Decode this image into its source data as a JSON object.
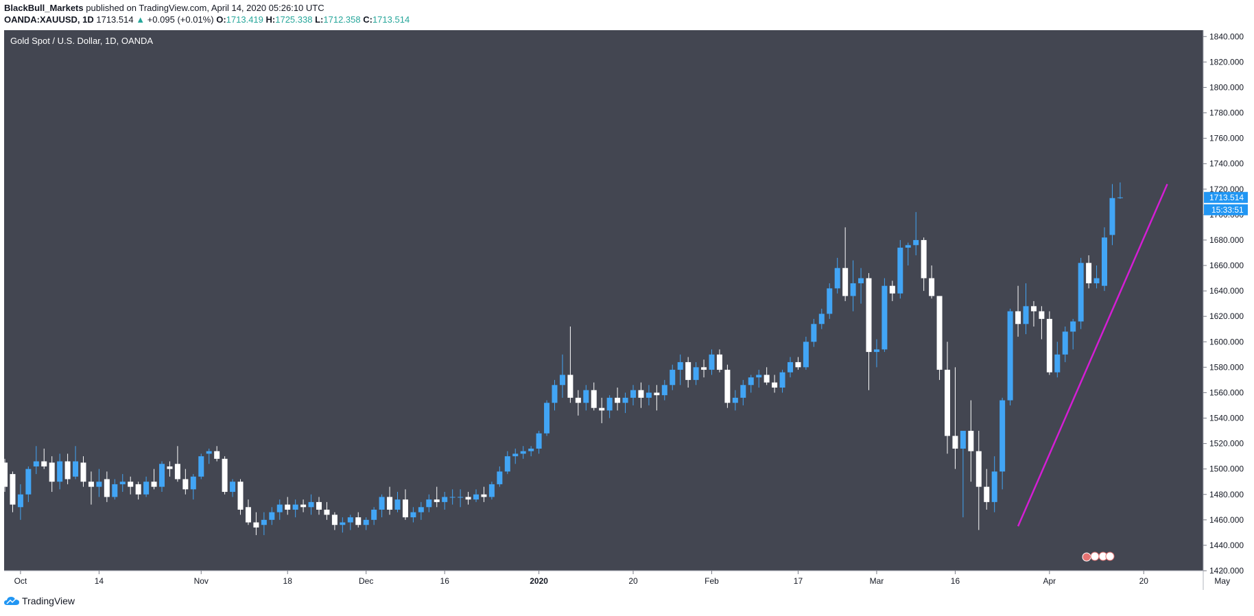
{
  "header": {
    "publisher": "BlackBull_Markets",
    "published_text": "published on TradingView.com, April 14, 2020 05:26:10 UTC",
    "symbol": "OANDA:XAUUSD, 1D",
    "last": "1713.514",
    "change": "+0.095 (+0.01%)",
    "o_label": "O:",
    "o_val": "1713.419",
    "h_label": "H:",
    "h_val": "1725.338",
    "l_label": "L:",
    "l_val": "1712.358",
    "c_label": "C:",
    "c_val": "1713.514"
  },
  "footer": {
    "brand": "TradingView"
  },
  "colors": {
    "background": "#434651",
    "up_candle": "#42a5f5",
    "down_candle": "#ffffff",
    "trendline": "#d41ed4",
    "price_badge": "#2196f3"
  },
  "chart_data": {
    "type": "candlestick",
    "title": "Gold Spot / U.S. Dollar, 1D, OANDA",
    "ylim": [
      1420,
      1845
    ],
    "y_ticks": [
      "1420.000",
      "1440.000",
      "1460.000",
      "1480.000",
      "1500.000",
      "1520.000",
      "1540.000",
      "1560.000",
      "1580.000",
      "1600.000",
      "1620.000",
      "1640.000",
      "1660.000",
      "1680.000",
      "1700.000",
      "1720.000",
      "1740.000",
      "1760.000",
      "1780.000",
      "1800.000",
      "1820.000",
      "1840.000"
    ],
    "x_ticks": [
      {
        "label": "Oct",
        "index": 2
      },
      {
        "label": "14",
        "index": 12
      },
      {
        "label": "Nov",
        "index": 25
      },
      {
        "label": "18",
        "index": 36
      },
      {
        "label": "Dec",
        "index": 46
      },
      {
        "label": "16",
        "index": 56
      },
      {
        "label": "2020",
        "index": 68
      },
      {
        "label": "20",
        "index": 80
      },
      {
        "label": "Feb",
        "index": 90
      },
      {
        "label": "17",
        "index": 101
      },
      {
        "label": "Mar",
        "index": 111
      },
      {
        "label": "16",
        "index": 121
      },
      {
        "label": "Apr",
        "index": 133
      },
      {
        "label": "20",
        "index": 145
      },
      {
        "label": "May",
        "index": 155
      }
    ],
    "last_price": "1713.514",
    "countdown": "15:33:51",
    "candles": [
      [
        1505,
        1508,
        1482,
        1486
      ],
      [
        1496,
        1498,
        1466,
        1472
      ],
      [
        1470,
        1488,
        1460,
        1480
      ],
      [
        1480,
        1502,
        1474,
        1500
      ],
      [
        1502,
        1518,
        1496,
        1506
      ],
      [
        1506,
        1516,
        1500,
        1502
      ],
      [
        1505,
        1510,
        1482,
        1490
      ],
      [
        1490,
        1512,
        1484,
        1506
      ],
      [
        1506,
        1512,
        1488,
        1492
      ],
      [
        1494,
        1518,
        1492,
        1506
      ],
      [
        1505,
        1510,
        1486,
        1490
      ],
      [
        1490,
        1498,
        1472,
        1486
      ],
      [
        1486,
        1500,
        1478,
        1490
      ],
      [
        1492,
        1498,
        1474,
        1478
      ],
      [
        1478,
        1492,
        1476,
        1488
      ],
      [
        1488,
        1496,
        1482,
        1490
      ],
      [
        1490,
        1494,
        1480,
        1486
      ],
      [
        1488,
        1490,
        1476,
        1480
      ],
      [
        1480,
        1494,
        1478,
        1490
      ],
      [
        1490,
        1500,
        1484,
        1486
      ],
      [
        1486,
        1506,
        1482,
        1504
      ],
      [
        1502,
        1506,
        1494,
        1500
      ],
      [
        1504,
        1518,
        1490,
        1492
      ],
      [
        1492,
        1500,
        1480,
        1484
      ],
      [
        1484,
        1496,
        1476,
        1494
      ],
      [
        1494,
        1512,
        1492,
        1510
      ],
      [
        1512,
        1516,
        1504,
        1514
      ],
      [
        1514,
        1518,
        1506,
        1508
      ],
      [
        1508,
        1510,
        1480,
        1482
      ],
      [
        1482,
        1492,
        1478,
        1490
      ],
      [
        1490,
        1492,
        1464,
        1468
      ],
      [
        1470,
        1476,
        1456,
        1458
      ],
      [
        1458,
        1466,
        1448,
        1454
      ],
      [
        1456,
        1466,
        1448,
        1460
      ],
      [
        1460,
        1470,
        1456,
        1466
      ],
      [
        1466,
        1476,
        1460,
        1472
      ],
      [
        1472,
        1478,
        1464,
        1468
      ],
      [
        1468,
        1476,
        1462,
        1472
      ],
      [
        1472,
        1476,
        1466,
        1470
      ],
      [
        1470,
        1480,
        1464,
        1474
      ],
      [
        1474,
        1478,
        1464,
        1468
      ],
      [
        1468,
        1474,
        1460,
        1464
      ],
      [
        1464,
        1466,
        1452,
        1456
      ],
      [
        1456,
        1462,
        1450,
        1458
      ],
      [
        1458,
        1464,
        1452,
        1462
      ],
      [
        1462,
        1466,
        1454,
        1456
      ],
      [
        1456,
        1462,
        1452,
        1460
      ],
      [
        1460,
        1470,
        1456,
        1468
      ],
      [
        1468,
        1480,
        1462,
        1478
      ],
      [
        1478,
        1486,
        1464,
        1468
      ],
      [
        1468,
        1482,
        1466,
        1476
      ],
      [
        1476,
        1484,
        1460,
        1462
      ],
      [
        1462,
        1470,
        1458,
        1466
      ],
      [
        1466,
        1474,
        1460,
        1470
      ],
      [
        1470,
        1480,
        1466,
        1476
      ],
      [
        1476,
        1486,
        1470,
        1474
      ],
      [
        1474,
        1482,
        1468,
        1478
      ],
      [
        1478,
        1484,
        1472,
        1478
      ],
      [
        1478,
        1484,
        1470,
        1478
      ],
      [
        1478,
        1482,
        1472,
        1476
      ],
      [
        1476,
        1484,
        1474,
        1480
      ],
      [
        1480,
        1486,
        1474,
        1478
      ],
      [
        1478,
        1490,
        1476,
        1488
      ],
      [
        1488,
        1502,
        1486,
        1498
      ],
      [
        1498,
        1514,
        1496,
        1510
      ],
      [
        1510,
        1516,
        1504,
        1512
      ],
      [
        1512,
        1518,
        1508,
        1514
      ],
      [
        1514,
        1518,
        1510,
        1516
      ],
      [
        1516,
        1530,
        1512,
        1528
      ],
      [
        1528,
        1554,
        1526,
        1552
      ],
      [
        1552,
        1570,
        1546,
        1566
      ],
      [
        1566,
        1590,
        1556,
        1574
      ],
      [
        1574,
        1612,
        1552,
        1556
      ],
      [
        1556,
        1562,
        1542,
        1552
      ],
      [
        1552,
        1566,
        1546,
        1562
      ],
      [
        1562,
        1568,
        1546,
        1548
      ],
      [
        1548,
        1556,
        1536,
        1546
      ],
      [
        1546,
        1558,
        1540,
        1556
      ],
      [
        1556,
        1564,
        1546,
        1552
      ],
      [
        1552,
        1560,
        1544,
        1556
      ],
      [
        1556,
        1566,
        1550,
        1562
      ],
      [
        1562,
        1568,
        1548,
        1556
      ],
      [
        1556,
        1566,
        1550,
        1560
      ],
      [
        1560,
        1566,
        1546,
        1558
      ],
      [
        1558,
        1570,
        1554,
        1566
      ],
      [
        1566,
        1582,
        1562,
        1578
      ],
      [
        1578,
        1590,
        1566,
        1584
      ],
      [
        1584,
        1588,
        1564,
        1570
      ],
      [
        1570,
        1584,
        1566,
        1580
      ],
      [
        1580,
        1586,
        1572,
        1578
      ],
      [
        1578,
        1594,
        1574,
        1590
      ],
      [
        1590,
        1594,
        1576,
        1578
      ],
      [
        1578,
        1582,
        1548,
        1552
      ],
      [
        1552,
        1562,
        1546,
        1556
      ],
      [
        1556,
        1570,
        1550,
        1566
      ],
      [
        1566,
        1574,
        1560,
        1572
      ],
      [
        1572,
        1578,
        1564,
        1574
      ],
      [
        1574,
        1580,
        1566,
        1568
      ],
      [
        1568,
        1574,
        1560,
        1564
      ],
      [
        1564,
        1578,
        1560,
        1576
      ],
      [
        1576,
        1588,
        1572,
        1584
      ],
      [
        1584,
        1588,
        1578,
        1580
      ],
      [
        1580,
        1604,
        1578,
        1600
      ],
      [
        1600,
        1618,
        1596,
        1614
      ],
      [
        1614,
        1626,
        1610,
        1622
      ],
      [
        1622,
        1646,
        1618,
        1642
      ],
      [
        1642,
        1666,
        1638,
        1658
      ],
      [
        1658,
        1690,
        1632,
        1636
      ],
      [
        1636,
        1664,
        1624,
        1646
      ],
      [
        1646,
        1658,
        1630,
        1650
      ],
      [
        1650,
        1654,
        1562,
        1592
      ],
      [
        1592,
        1602,
        1580,
        1594
      ],
      [
        1594,
        1650,
        1592,
        1644
      ],
      [
        1644,
        1648,
        1632,
        1638
      ],
      [
        1638,
        1680,
        1634,
        1674
      ],
      [
        1674,
        1678,
        1660,
        1676
      ],
      [
        1676,
        1702,
        1668,
        1680
      ],
      [
        1680,
        1682,
        1640,
        1650
      ],
      [
        1650,
        1660,
        1634,
        1636
      ],
      [
        1636,
        1636,
        1570,
        1578
      ],
      [
        1578,
        1600,
        1512,
        1526
      ],
      [
        1526,
        1580,
        1500,
        1516
      ],
      [
        1516,
        1530,
        1462,
        1530
      ],
      [
        1530,
        1554,
        1490,
        1514
      ],
      [
        1514,
        1530,
        1452,
        1486
      ],
      [
        1486,
        1500,
        1468,
        1474
      ],
      [
        1474,
        1510,
        1466,
        1498
      ],
      [
        1498,
        1556,
        1484,
        1554
      ],
      [
        1554,
        1626,
        1550,
        1624
      ],
      [
        1624,
        1644,
        1604,
        1614
      ],
      [
        1614,
        1646,
        1606,
        1628
      ],
      [
        1628,
        1632,
        1612,
        1624
      ],
      [
        1624,
        1628,
        1602,
        1618
      ],
      [
        1618,
        1624,
        1574,
        1576
      ],
      [
        1576,
        1600,
        1572,
        1590
      ],
      [
        1590,
        1612,
        1584,
        1608
      ],
      [
        1608,
        1618,
        1594,
        1616
      ],
      [
        1616,
        1666,
        1610,
        1662
      ],
      [
        1662,
        1668,
        1642,
        1646
      ],
      [
        1646,
        1660,
        1642,
        1650
      ],
      [
        1644,
        1690,
        1640,
        1682
      ],
      [
        1684,
        1724,
        1676,
        1713
      ],
      [
        1713.4,
        1725.3,
        1712.4,
        1713.5
      ]
    ],
    "trendline": {
      "from": {
        "index": 129,
        "price": 1455
      },
      "to": {
        "index": 148,
        "price": 1724
      }
    },
    "grid": false
  }
}
